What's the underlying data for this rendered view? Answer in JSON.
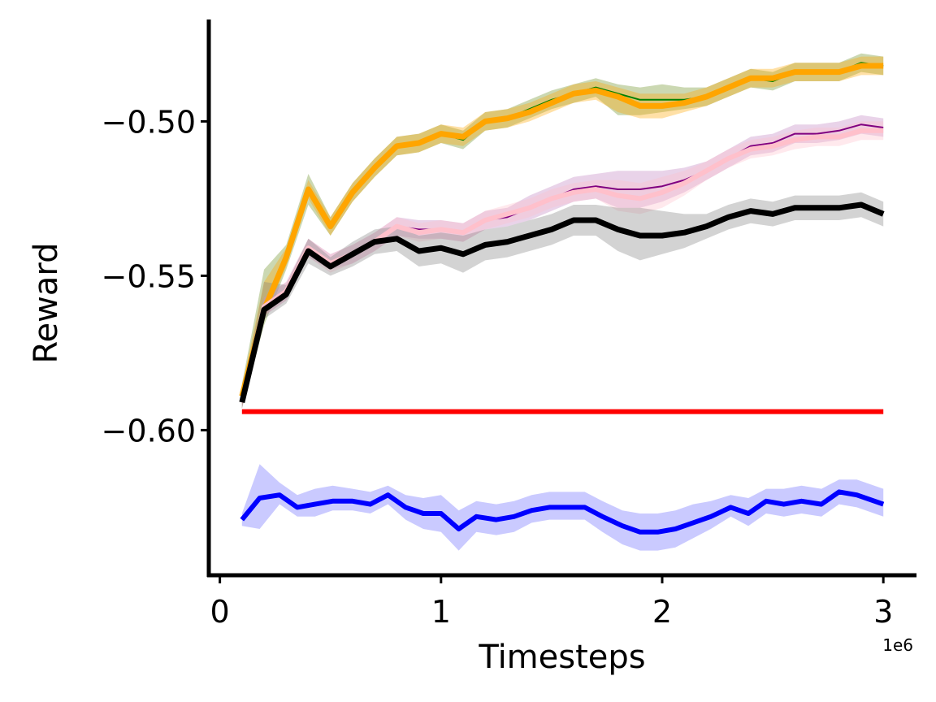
{
  "chart_data": {
    "type": "line",
    "title": "",
    "xlabel": "Timesteps",
    "ylabel": "Reward",
    "x_offset_label": "1e6",
    "xlim": [
      -0.05,
      3.15
    ],
    "ylim": [
      -0.647,
      -0.467
    ],
    "x_ticks": [
      0,
      1,
      2,
      3
    ],
    "x_tick_labels": [
      "0",
      "1",
      "2",
      "3"
    ],
    "y_ticks": [
      -0.6,
      -0.55,
      -0.5
    ],
    "y_tick_labels": [
      "−0.60",
      "−0.55",
      "−0.50"
    ],
    "grid": false,
    "legend": "none",
    "x": [
      0.1,
      0.2,
      0.3,
      0.4,
      0.5,
      0.6,
      0.7,
      0.8,
      0.9,
      1.0,
      1.1,
      1.2,
      1.3,
      1.4,
      1.5,
      1.6,
      1.7,
      1.8,
      1.9,
      2.0,
      2.1,
      2.2,
      2.3,
      2.4,
      2.5,
      2.6,
      2.7,
      2.8,
      2.9,
      3.0
    ],
    "series": [
      {
        "color": "#008000",
        "band_color": "#6b8e23",
        "line_width": 2,
        "values": [
          -0.589,
          -0.561,
          -0.544,
          -0.522,
          -0.534,
          -0.523,
          -0.515,
          -0.508,
          -0.507,
          -0.504,
          -0.506,
          -0.5,
          -0.499,
          -0.496,
          -0.493,
          -0.491,
          -0.489,
          -0.491,
          -0.493,
          -0.493,
          -0.493,
          -0.492,
          -0.489,
          -0.486,
          -0.487,
          -0.484,
          -0.484,
          -0.484,
          -0.481,
          -0.482
        ],
        "lower": [
          -0.593,
          -0.566,
          -0.548,
          -0.527,
          -0.537,
          -0.526,
          -0.518,
          -0.511,
          -0.51,
          -0.507,
          -0.509,
          -0.503,
          -0.502,
          -0.499,
          -0.496,
          -0.494,
          -0.492,
          -0.498,
          -0.498,
          -0.497,
          -0.496,
          -0.495,
          -0.492,
          -0.489,
          -0.49,
          -0.487,
          -0.487,
          -0.487,
          -0.484,
          -0.485
        ],
        "upper": [
          -0.585,
          -0.548,
          -0.54,
          -0.517,
          -0.531,
          -0.52,
          -0.512,
          -0.505,
          -0.504,
          -0.501,
          -0.503,
          -0.497,
          -0.496,
          -0.493,
          -0.49,
          -0.488,
          -0.486,
          -0.488,
          -0.489,
          -0.488,
          -0.489,
          -0.489,
          -0.486,
          -0.483,
          -0.484,
          -0.481,
          -0.481,
          -0.481,
          -0.478,
          -0.479
        ]
      },
      {
        "color": "#ffa500",
        "band_color": "#ffa500",
        "line_width": 7,
        "values": [
          -0.589,
          -0.561,
          -0.544,
          -0.522,
          -0.534,
          -0.523,
          -0.515,
          -0.508,
          -0.507,
          -0.504,
          -0.505,
          -0.5,
          -0.499,
          -0.497,
          -0.494,
          -0.491,
          -0.49,
          -0.492,
          -0.495,
          -0.495,
          -0.494,
          -0.492,
          -0.489,
          -0.486,
          -0.486,
          -0.484,
          -0.484,
          -0.484,
          -0.482,
          -0.482
        ],
        "lower": [
          -0.592,
          -0.564,
          -0.547,
          -0.525,
          -0.537,
          -0.526,
          -0.518,
          -0.511,
          -0.51,
          -0.507,
          -0.508,
          -0.503,
          -0.502,
          -0.5,
          -0.497,
          -0.494,
          -0.493,
          -0.497,
          -0.499,
          -0.499,
          -0.497,
          -0.495,
          -0.492,
          -0.489,
          -0.489,
          -0.487,
          -0.487,
          -0.487,
          -0.485,
          -0.485
        ],
        "upper": [
          -0.586,
          -0.552,
          -0.541,
          -0.519,
          -0.531,
          -0.52,
          -0.512,
          -0.505,
          -0.504,
          -0.501,
          -0.502,
          -0.497,
          -0.496,
          -0.494,
          -0.491,
          -0.488,
          -0.487,
          -0.489,
          -0.491,
          -0.491,
          -0.491,
          -0.489,
          -0.486,
          -0.483,
          -0.483,
          -0.481,
          -0.481,
          -0.481,
          -0.479,
          -0.479
        ]
      },
      {
        "color": "#800080",
        "band_color": "#c080c0",
        "line_width": 2,
        "values": [
          -0.591,
          -0.56,
          -0.555,
          -0.541,
          -0.546,
          -0.543,
          -0.539,
          -0.534,
          -0.535,
          -0.535,
          -0.536,
          -0.532,
          -0.531,
          -0.528,
          -0.525,
          -0.522,
          -0.521,
          -0.522,
          -0.522,
          -0.521,
          -0.519,
          -0.516,
          -0.512,
          -0.508,
          -0.507,
          -0.504,
          -0.504,
          -0.503,
          -0.501,
          -0.502
        ],
        "lower": [
          -0.593,
          -0.563,
          -0.558,
          -0.544,
          -0.548,
          -0.546,
          -0.542,
          -0.537,
          -0.538,
          -0.538,
          -0.539,
          -0.535,
          -0.534,
          -0.532,
          -0.529,
          -0.526,
          -0.525,
          -0.528,
          -0.528,
          -0.526,
          -0.523,
          -0.519,
          -0.515,
          -0.511,
          -0.51,
          -0.507,
          -0.507,
          -0.506,
          -0.504,
          -0.505
        ],
        "upper": [
          -0.589,
          -0.557,
          -0.552,
          -0.538,
          -0.543,
          -0.54,
          -0.536,
          -0.531,
          -0.532,
          -0.532,
          -0.533,
          -0.529,
          -0.528,
          -0.524,
          -0.521,
          -0.518,
          -0.517,
          -0.516,
          -0.516,
          -0.516,
          -0.515,
          -0.513,
          -0.509,
          -0.505,
          -0.504,
          -0.501,
          -0.501,
          -0.5,
          -0.498,
          -0.499
        ]
      },
      {
        "color": "#ffc0cb",
        "band_color": "#ffc0cb",
        "line_width": 6,
        "values": [
          -0.591,
          -0.56,
          -0.555,
          -0.541,
          -0.546,
          -0.543,
          -0.539,
          -0.534,
          -0.536,
          -0.535,
          -0.536,
          -0.532,
          -0.53,
          -0.528,
          -0.525,
          -0.523,
          -0.522,
          -0.524,
          -0.525,
          -0.523,
          -0.52,
          -0.516,
          -0.512,
          -0.509,
          -0.508,
          -0.506,
          -0.505,
          -0.505,
          -0.503,
          -0.503
        ],
        "lower": [
          -0.593,
          -0.563,
          -0.558,
          -0.544,
          -0.549,
          -0.546,
          -0.542,
          -0.537,
          -0.539,
          -0.538,
          -0.539,
          -0.535,
          -0.533,
          -0.531,
          -0.528,
          -0.526,
          -0.525,
          -0.529,
          -0.53,
          -0.528,
          -0.524,
          -0.519,
          -0.515,
          -0.512,
          -0.511,
          -0.509,
          -0.508,
          -0.508,
          -0.506,
          -0.506
        ],
        "upper": [
          -0.589,
          -0.557,
          -0.552,
          -0.538,
          -0.543,
          -0.54,
          -0.536,
          -0.531,
          -0.533,
          -0.532,
          -0.533,
          -0.529,
          -0.527,
          -0.525,
          -0.522,
          -0.52,
          -0.519,
          -0.519,
          -0.52,
          -0.518,
          -0.516,
          -0.513,
          -0.509,
          -0.506,
          -0.505,
          -0.503,
          -0.502,
          -0.502,
          -0.5,
          -0.5
        ]
      },
      {
        "color": "#000000",
        "band_color": "#808080",
        "line_width": 7,
        "values": [
          -0.591,
          -0.561,
          -0.556,
          -0.542,
          -0.547,
          -0.543,
          -0.539,
          -0.538,
          -0.542,
          -0.541,
          -0.543,
          -0.54,
          -0.539,
          -0.537,
          -0.535,
          -0.532,
          -0.532,
          -0.535,
          -0.537,
          -0.537,
          -0.536,
          -0.534,
          -0.531,
          -0.529,
          -0.53,
          -0.528,
          -0.528,
          -0.528,
          -0.527,
          -0.53
        ],
        "lower": [
          -0.593,
          -0.564,
          -0.559,
          -0.546,
          -0.55,
          -0.547,
          -0.543,
          -0.542,
          -0.547,
          -0.546,
          -0.549,
          -0.545,
          -0.544,
          -0.542,
          -0.54,
          -0.537,
          -0.537,
          -0.542,
          -0.545,
          -0.543,
          -0.541,
          -0.538,
          -0.535,
          -0.533,
          -0.534,
          -0.532,
          -0.532,
          -0.532,
          -0.531,
          -0.534
        ],
        "upper": [
          -0.589,
          -0.552,
          -0.553,
          -0.538,
          -0.544,
          -0.539,
          -0.535,
          -0.534,
          -0.537,
          -0.536,
          -0.537,
          -0.535,
          -0.534,
          -0.532,
          -0.53,
          -0.527,
          -0.527,
          -0.528,
          -0.528,
          -0.529,
          -0.53,
          -0.53,
          -0.527,
          -0.525,
          -0.526,
          -0.524,
          -0.524,
          -0.524,
          -0.523,
          -0.526
        ]
      },
      {
        "color": "#ff0000",
        "band_color": "#ff0000",
        "line_width": 6,
        "values": [
          -0.594,
          -0.594,
          -0.594,
          -0.594,
          -0.594,
          -0.594,
          -0.594,
          -0.594,
          -0.594,
          -0.594,
          -0.594,
          -0.594,
          -0.594,
          -0.594,
          -0.594,
          -0.594,
          -0.594,
          -0.594,
          -0.594,
          -0.594,
          -0.594,
          -0.594,
          -0.594,
          -0.594,
          -0.594,
          -0.594,
          -0.594,
          -0.594,
          -0.594,
          -0.594
        ]
      },
      {
        "color": "#0000ff",
        "band_color": "#6666ff",
        "line_width": 6,
        "values": [
          -0.629,
          -0.622,
          -0.621,
          -0.625,
          -0.624,
          -0.623,
          -0.623,
          -0.624,
          -0.621,
          -0.625,
          -0.627,
          -0.627,
          -0.632,
          -0.628,
          -0.629,
          -0.628,
          -0.626,
          -0.625,
          -0.625,
          -0.625,
          -0.628,
          -0.631,
          -0.633,
          -0.633,
          -0.632,
          -0.63,
          -0.628,
          -0.625,
          -0.627,
          -0.623,
          -0.624,
          -0.623,
          -0.624,
          -0.62,
          -0.621,
          -0.624
        ],
        "lower": [
          -0.631,
          -0.632,
          -0.624,
          -0.628,
          -0.628,
          -0.626,
          -0.626,
          -0.627,
          -0.624,
          -0.629,
          -0.632,
          -0.633,
          -0.639,
          -0.633,
          -0.634,
          -0.633,
          -0.63,
          -0.629,
          -0.629,
          -0.629,
          -0.633,
          -0.637,
          -0.639,
          -0.639,
          -0.638,
          -0.635,
          -0.632,
          -0.628,
          -0.631,
          -0.627,
          -0.628,
          -0.627,
          -0.628,
          -0.624,
          -0.625,
          -0.628
        ],
        "upper": [
          -0.627,
          -0.611,
          -0.617,
          -0.621,
          -0.619,
          -0.618,
          -0.619,
          -0.62,
          -0.618,
          -0.621,
          -0.622,
          -0.621,
          -0.626,
          -0.623,
          -0.624,
          -0.623,
          -0.621,
          -0.62,
          -0.62,
          -0.62,
          -0.623,
          -0.626,
          -0.627,
          -0.627,
          -0.626,
          -0.624,
          -0.623,
          -0.621,
          -0.622,
          -0.619,
          -0.619,
          -0.618,
          -0.619,
          -0.616,
          -0.616,
          -0.619
        ],
        "x": [
          0.1,
          0.18,
          0.27,
          0.35,
          0.43,
          0.51,
          0.6,
          0.68,
          0.76,
          0.84,
          0.92,
          1.0,
          1.08,
          1.16,
          1.25,
          1.33,
          1.41,
          1.49,
          1.57,
          1.65,
          1.73,
          1.82,
          1.9,
          1.98,
          2.06,
          2.14,
          2.22,
          2.31,
          2.39,
          2.47,
          2.55,
          2.63,
          2.72,
          2.8,
          2.88,
          3.0
        ]
      }
    ]
  }
}
